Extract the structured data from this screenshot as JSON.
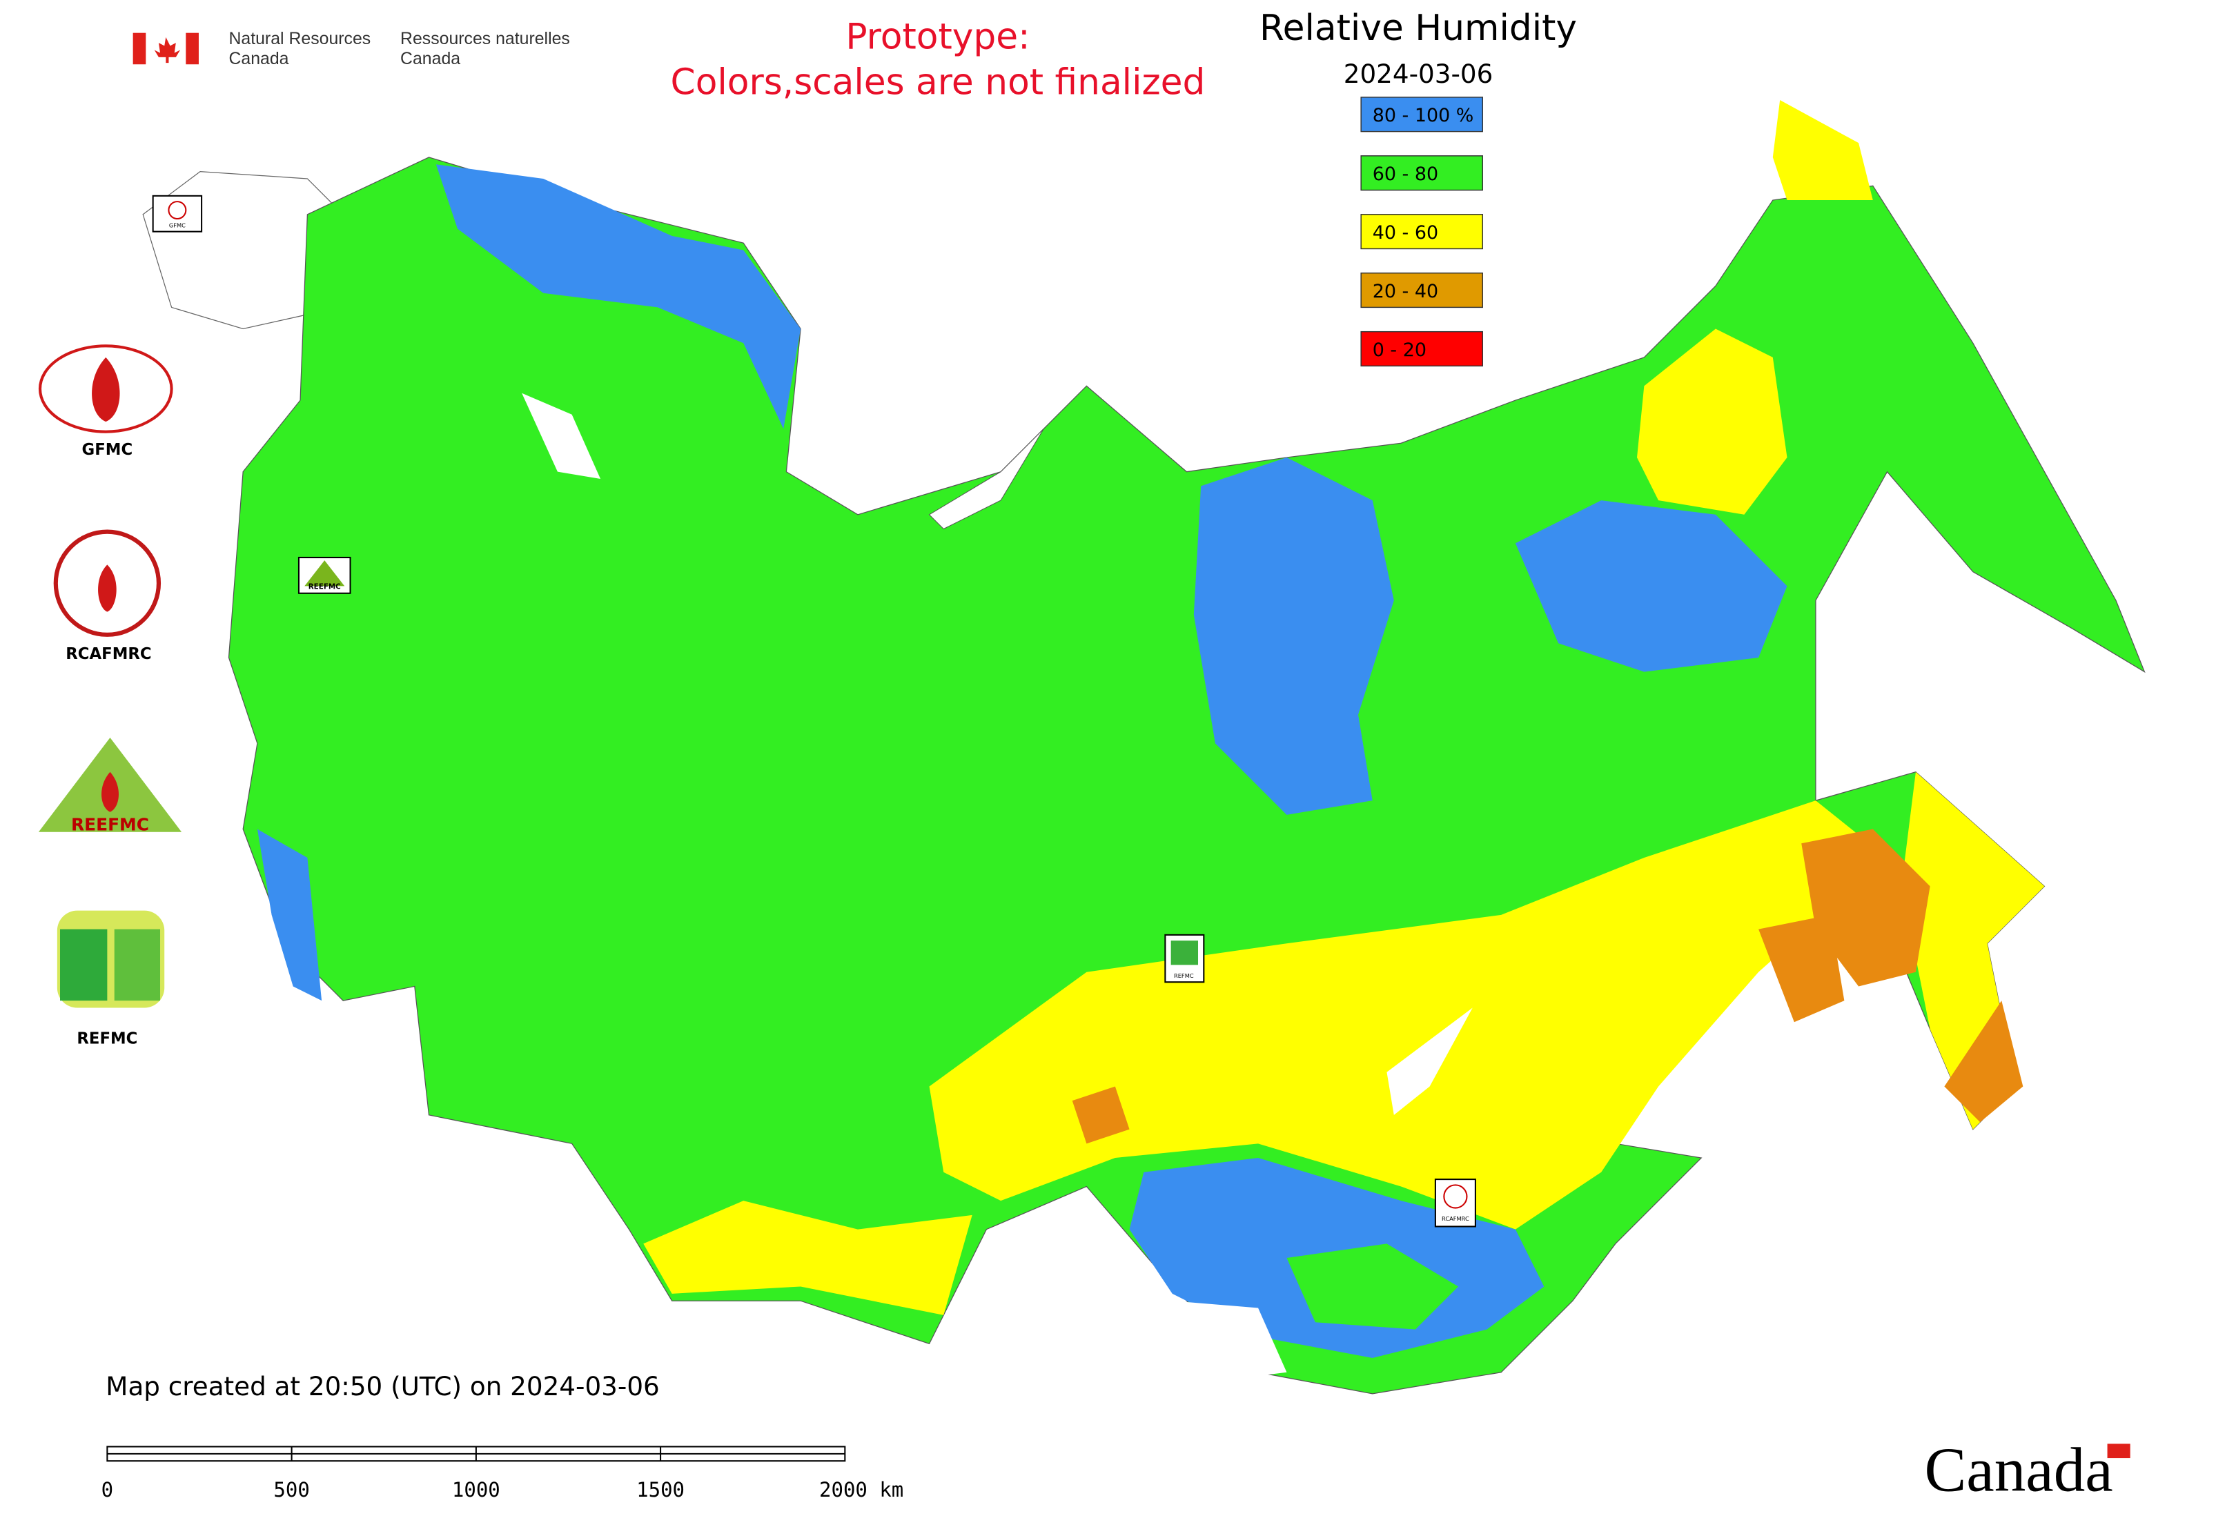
{
  "header": {
    "agency_en": [
      "Natural Resources",
      "Canada"
    ],
    "agency_fr": [
      "Ressources naturelles",
      "Canada"
    ]
  },
  "notice": [
    "Prototype:",
    "Colors,scales are not finalized"
  ],
  "title": "Relative Humidity",
  "date": "2024-03-06",
  "legend": [
    {
      "label": "80 - 100 %",
      "color": "#3a8ef0"
    },
    {
      "label": "60 - 80",
      "color": "#33ee22"
    },
    {
      "label": "40 - 60",
      "color": "#ffff00"
    },
    {
      "label": "20 - 40",
      "color": "#e09a00"
    },
    {
      "label": "0 - 20",
      "color": "#ff0000"
    }
  ],
  "logos": [
    "GFMC",
    "RCAFMRC",
    "REEFMC",
    "REFMC"
  ],
  "map_badges": [
    "GFMC",
    "REEFMC",
    "REFMC",
    "RCAFMRC"
  ],
  "footer": {
    "created": "Map created at 20:50 (UTC) on 2024-03-06",
    "scale_labels": [
      "0",
      "500",
      "1000",
      "1500",
      "2000 km"
    ],
    "wordmark": "Canada"
  }
}
